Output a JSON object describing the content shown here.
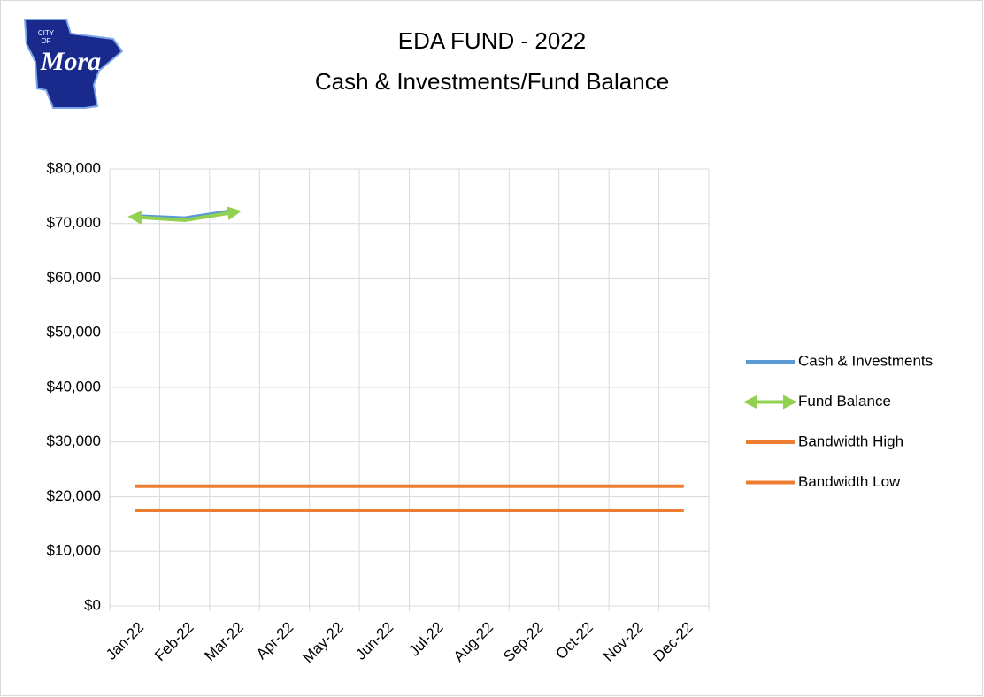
{
  "logo": {
    "line1": "CITY",
    "line2": "OF",
    "name": "Mora"
  },
  "chart_data": {
    "type": "line",
    "title": "EDA FUND - 2022",
    "subtitle": "Cash & Investments/Fund Balance",
    "categories": [
      "Jan-22",
      "Feb-22",
      "Mar-22",
      "Apr-22",
      "May-22",
      "Jun-22",
      "Jul-22",
      "Aug-22",
      "Sep-22",
      "Oct-22",
      "Nov-22",
      "Dec-22"
    ],
    "series": [
      {
        "name": "Cash & Investments",
        "color": "#5b9bd5",
        "values": [
          71400,
          71000,
          72400,
          null,
          null,
          null,
          null,
          null,
          null,
          null,
          null,
          null
        ]
      },
      {
        "name": "Fund Balance",
        "color": "#92d050",
        "arrows": true,
        "values": [
          71200,
          70600,
          72100,
          null,
          null,
          null,
          null,
          null,
          null,
          null,
          null,
          null
        ]
      },
      {
        "name": "Bandwidth High",
        "color": "#ed7d31",
        "values": [
          21900,
          21900,
          21900,
          21900,
          21900,
          21900,
          21900,
          21900,
          21900,
          21900,
          21900,
          21900
        ]
      },
      {
        "name": "Bandwidth Low",
        "color": "#ed7d31",
        "values": [
          17500,
          17500,
          17500,
          17500,
          17500,
          17500,
          17500,
          17500,
          17500,
          17500,
          17500,
          17500
        ]
      }
    ],
    "ylim": [
      0,
      80000
    ],
    "yticks": [
      {
        "value": 0,
        "label": "$0"
      },
      {
        "value": 10000,
        "label": "$10,000"
      },
      {
        "value": 20000,
        "label": "$20,000"
      },
      {
        "value": 30000,
        "label": "$30,000"
      },
      {
        "value": 40000,
        "label": "$40,000"
      },
      {
        "value": 50000,
        "label": "$50,000"
      },
      {
        "value": 60000,
        "label": "$60,000"
      },
      {
        "value": 70000,
        "label": "$70,000"
      },
      {
        "value": 80000,
        "label": "$80,000"
      }
    ],
    "grid": true,
    "legend": "right"
  }
}
